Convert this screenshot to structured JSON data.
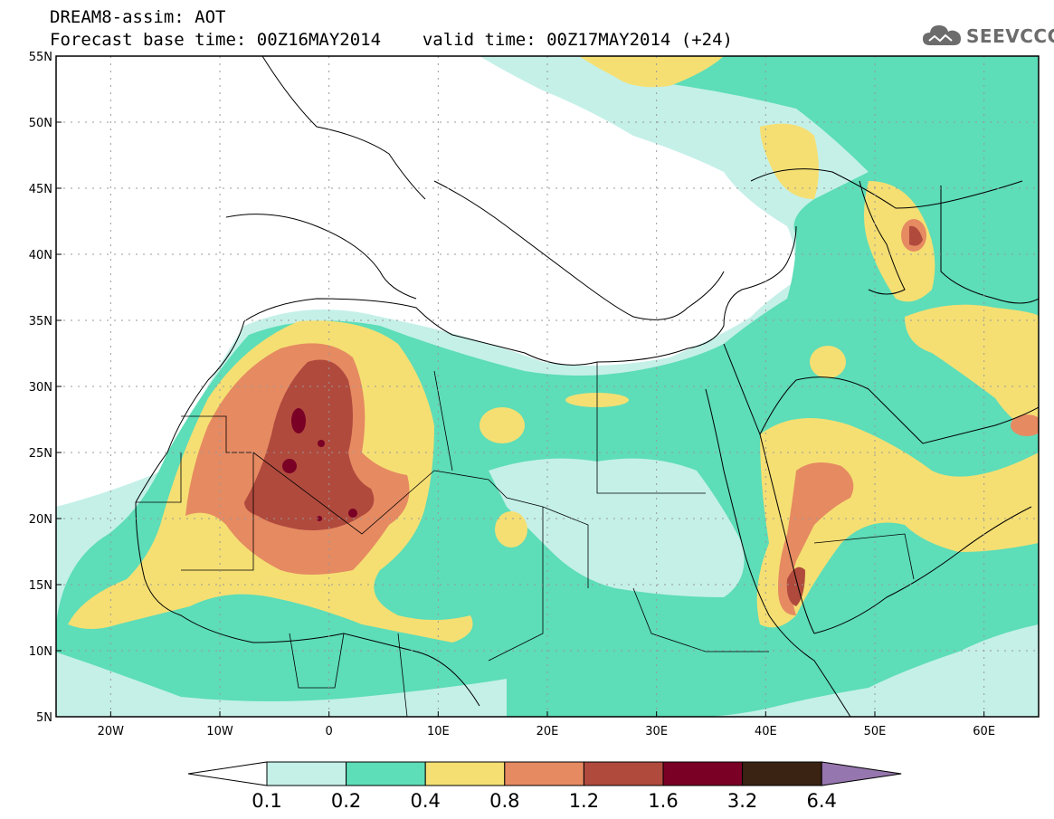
{
  "title": {
    "line1": "DREAM8-assim: AOT",
    "base_time": "Forecast base time: 00Z16MAY2014",
    "valid_time": "valid time: 00Z17MAY2014 (+24)"
  },
  "logo": {
    "text": "SEEVCCC",
    "icon": "cloud-icon"
  },
  "map": {
    "variable": "AOT",
    "model": "DREAM8-assim",
    "lon_range": [
      -25,
      65
    ],
    "lat_range": [
      5,
      55
    ],
    "lon_ticks": [
      "20W",
      "10W",
      "0",
      "10E",
      "20E",
      "30E",
      "40E",
      "50E",
      "60E"
    ],
    "lat_ticks": [
      "5N",
      "10N",
      "15N",
      "20N",
      "25N",
      "30N",
      "35N",
      "40N",
      "45N",
      "50N",
      "55N"
    ],
    "grid": "dotted"
  },
  "colorbar": {
    "labels": [
      "0.1",
      "0.2",
      "0.4",
      "0.8",
      "1.2",
      "1.6",
      "3.2",
      "6.4"
    ],
    "colors": [
      "#c4f0e8",
      "#5dddb8",
      "#f5df73",
      "#e68a62",
      "#b04a3d",
      "#7a0025",
      "#3a2313",
      "#9676ae"
    ],
    "under_color": "#ffffff"
  }
}
